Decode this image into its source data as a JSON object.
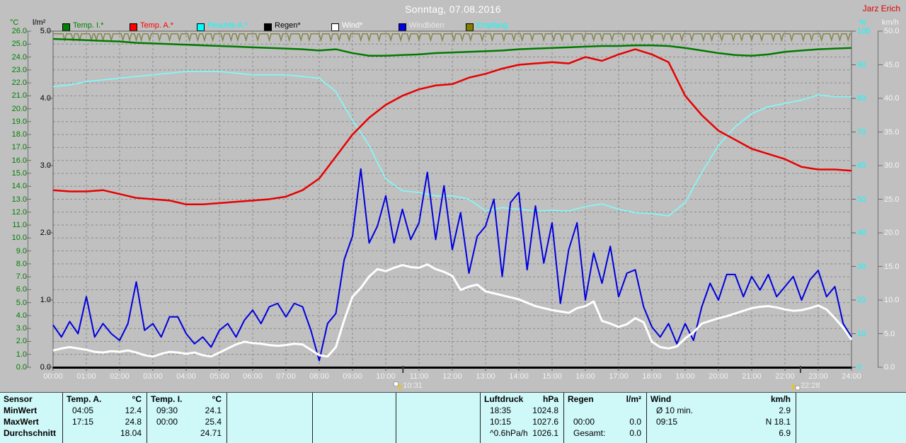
{
  "header": {
    "title": "Sonntag, 07.08.2016",
    "watermark": "Jarz Erich"
  },
  "legend": [
    {
      "label": "Temp. I.*",
      "swatch": "#008000",
      "text": "#008000"
    },
    {
      "label": "Temp. A.*",
      "swatch": "#FF0000",
      "text": "#FF0000"
    },
    {
      "label": "Feuchte A.*",
      "swatch": "#00FFFF",
      "text": "#00FFFF"
    },
    {
      "label": "Regen*",
      "swatch": "#000000",
      "text": "#000000"
    },
    {
      "label": "Wind*",
      "swatch": "#FFFFFF",
      "text": "#FFFFFF"
    },
    {
      "label": "Windböen",
      "swatch": "#0000E0",
      "text": "#E8E8E8"
    },
    {
      "label": "Empfang",
      "swatch": "#808000",
      "text": "#00FFFF"
    }
  ],
  "axes": {
    "left_c": {
      "unit": "°C",
      "labels": [
        "26.0",
        "25.0",
        "24.0",
        "23.0",
        "22.0",
        "21.0",
        "20.0",
        "19.0",
        "18.0",
        "17.0",
        "16.0",
        "15.0",
        "14.0",
        "13.0",
        "12.0",
        "11.0",
        "10.0",
        "9.0",
        "8.0",
        "7.0",
        "6.0",
        "5.0",
        "4.0",
        "3.0",
        "2.0",
        "1.0",
        "0.0"
      ]
    },
    "left_lm2": {
      "unit": "l/m²",
      "labels": [
        "5.0",
        "4.0",
        "3.0",
        "2.0",
        "1.0",
        "0.0"
      ]
    },
    "right_pct": {
      "unit": "%",
      "labels": [
        "100",
        "90",
        "80",
        "70",
        "60",
        "50",
        "40",
        "30",
        "20",
        "10",
        "0"
      ]
    },
    "right_kmh": {
      "unit": "km/h",
      "labels": [
        "50.0",
        "45.0",
        "40.0",
        "35.0",
        "30.0",
        "25.0",
        "20.0",
        "15.0",
        "10.0",
        "5.0",
        "0.0"
      ]
    }
  },
  "x_axis": {
    "labels": [
      "00:00",
      "01:00",
      "02:00",
      "03:00",
      "04:00",
      "05:00",
      "06:00",
      "07:00",
      "08:00",
      "09:00",
      "10:00",
      "11:00",
      "12:00",
      "13:00",
      "14:00",
      "15:00",
      "16:00",
      "17:00",
      "18:00",
      "19:00",
      "20:00",
      "21:00",
      "22:00",
      "23:00",
      "24:00"
    ]
  },
  "sun_moon_markers": [
    {
      "label": "10:31",
      "hour": 10.517,
      "variant": "rise"
    },
    {
      "label": "22:28",
      "hour": 22.467,
      "variant": "set"
    }
  ],
  "chart_data": {
    "type": "line",
    "title": "Sonntag, 07.08.2016",
    "x_unit": "hour",
    "x_range": [
      0,
      24
    ],
    "grid": "dashed, 1 h vertical / 1 °C horizontal",
    "axis_scales": {
      "c": [
        0,
        26
      ],
      "lm2": [
        0,
        5
      ],
      "pct": [
        0,
        100
      ],
      "kmh": [
        0,
        50
      ]
    },
    "series": [
      {
        "id": "temp_i",
        "name": "Temp. I.",
        "axis": "c",
        "color": "#007A00",
        "width": 2.5,
        "x_step": 0.5,
        "values": [
          25.4,
          25.35,
          25.3,
          25.25,
          25.2,
          25.1,
          25.05,
          25.0,
          24.95,
          24.9,
          24.85,
          24.8,
          24.75,
          24.7,
          24.65,
          24.6,
          24.5,
          24.6,
          24.3,
          24.1,
          24.1,
          24.15,
          24.2,
          24.3,
          24.35,
          24.4,
          24.45,
          24.5,
          24.6,
          24.65,
          24.7,
          24.75,
          24.8,
          24.85,
          24.85,
          24.9,
          24.9,
          24.85,
          24.7,
          24.5,
          24.3,
          24.15,
          24.1,
          24.2,
          24.4,
          24.5,
          24.6,
          24.65,
          24.7
        ]
      },
      {
        "id": "temp_a",
        "name": "Temp. A.",
        "axis": "c",
        "color": "#E80000",
        "width": 2.5,
        "x_step": 0.5,
        "values": [
          13.7,
          13.6,
          13.6,
          13.7,
          13.4,
          13.1,
          13.0,
          12.9,
          12.6,
          12.6,
          12.7,
          12.8,
          12.9,
          13.0,
          13.2,
          13.7,
          14.6,
          16.3,
          18.0,
          19.3,
          20.3,
          21.0,
          21.5,
          21.8,
          21.9,
          22.4,
          22.7,
          23.1,
          23.4,
          23.5,
          23.6,
          23.5,
          24.0,
          23.7,
          24.2,
          24.6,
          24.2,
          23.6,
          21.0,
          19.5,
          18.3,
          17.6,
          16.9,
          16.5,
          16.1,
          15.5,
          15.3,
          15.3,
          15.2
        ]
      },
      {
        "id": "feuchte_a",
        "name": "Feuchte A.",
        "axis": "pct",
        "color": "#7DFFFF",
        "width": 1.5,
        "x_step": 0.5,
        "values": [
          83.5,
          84,
          85,
          85.5,
          86,
          86.5,
          87,
          87.5,
          88,
          88,
          88,
          87.5,
          87,
          87,
          87,
          86.5,
          86,
          82,
          73.5,
          66,
          56,
          52.5,
          52,
          51,
          51,
          50,
          46.5,
          47.5,
          47,
          46.5,
          46.7,
          46.5,
          47.8,
          48.6,
          47,
          46,
          45.7,
          45,
          49,
          58,
          66,
          71.5,
          75.5,
          77.5,
          78.5,
          79.5,
          81,
          80.5,
          80.5
        ]
      },
      {
        "id": "regen",
        "name": "Regen",
        "axis": "lm2",
        "color": "#000000",
        "width": 2,
        "x_step": 24,
        "values": [
          0,
          0
        ]
      },
      {
        "id": "wind",
        "name": "Wind",
        "axis": "kmh",
        "color": "#FFFFFF",
        "width": 3,
        "x_step": 0.25,
        "values": [
          2.5,
          2.8,
          3.0,
          2.8,
          2.6,
          2.3,
          2.2,
          2.4,
          2.3,
          2.5,
          2.2,
          1.8,
          1.6,
          2.0,
          2.3,
          2.2,
          2.0,
          2.2,
          1.8,
          1.6,
          2.2,
          2.8,
          3.4,
          3.8,
          3.6,
          3.5,
          3.3,
          3.2,
          3.3,
          3.5,
          3.4,
          2.6,
          1.8,
          1.6,
          3.0,
          7.0,
          10.5,
          11.8,
          13.5,
          14.6,
          14.3,
          14.8,
          15.2,
          14.9,
          14.8,
          15.3,
          14.6,
          14.2,
          13.6,
          11.5,
          12.0,
          12.3,
          11.3,
          11.0,
          10.7,
          10.4,
          10.1,
          9.6,
          9.1,
          8.8,
          8.5,
          8.3,
          8.1,
          8.8,
          9.1,
          9.8,
          6.9,
          6.5,
          6.0,
          6.4,
          7.3,
          6.7,
          3.8,
          3.0,
          2.8,
          3.1,
          4.3,
          5.2,
          6.5,
          6.9,
          7.3,
          7.6,
          8.0,
          8.4,
          8.8,
          9.0,
          9.1,
          8.9,
          8.6,
          8.4,
          8.5,
          8.8,
          9.2,
          8.6,
          7.3,
          5.9,
          4.1
        ]
      },
      {
        "id": "windboeen",
        "name": "Windböen",
        "axis": "kmh",
        "color": "#0000DD",
        "width": 2,
        "x_step": 0.25,
        "values": [
          6.3,
          4.5,
          6.8,
          5.0,
          10.5,
          4.5,
          6.5,
          5.0,
          4.0,
          6.5,
          12.7,
          5.5,
          6.5,
          4.5,
          7.5,
          7.5,
          5.0,
          3.5,
          4.5,
          3.0,
          5.5,
          6.5,
          4.5,
          7.0,
          8.5,
          6.5,
          9.0,
          9.5,
          7.5,
          9.5,
          9.0,
          5.5,
          1.0,
          6.5,
          8.0,
          16.0,
          19.5,
          29.5,
          18.5,
          21.0,
          25.5,
          18.5,
          23.5,
          19.0,
          21.5,
          29.0,
          19.0,
          27.0,
          17.5,
          23.0,
          14.0,
          19.5,
          21.0,
          25.0,
          13.5,
          24.5,
          26.0,
          14.5,
          24.0,
          15.5,
          21.5,
          9.5,
          17.5,
          21.5,
          10.0,
          17.0,
          12.5,
          18.0,
          10.5,
          14.0,
          14.5,
          9.0,
          6.0,
          4.5,
          6.5,
          3.5,
          6.5,
          4.0,
          9.0,
          12.5,
          10.0,
          13.8,
          13.8,
          10.5,
          13.5,
          11.5,
          13.8,
          10.5,
          12.0,
          13.5,
          10.0,
          13.0,
          14.4,
          10.5,
          12.0,
          6.5,
          4.5
        ]
      },
      {
        "id": "empfang",
        "name": "Empfang",
        "axis": "pct",
        "color": "#85854A",
        "width": 1.5,
        "baseline": 99.2,
        "notch_depth": 1.9,
        "notch_hours": [
          0.35,
          0.6,
          0.8,
          1.15,
          1.3,
          1.5,
          1.75,
          2.1,
          2.3,
          2.5,
          2.65,
          2.9,
          3.2,
          3.5,
          3.8,
          4.1,
          4.35,
          4.55,
          4.8,
          5.1,
          5.35,
          5.55,
          5.8,
          6.15,
          6.5,
          6.85,
          7.1,
          7.45,
          7.7,
          8.05,
          8.35,
          8.6,
          8.9,
          9.25,
          9.5,
          9.8,
          10.15,
          10.45,
          10.7,
          11.0,
          11.35,
          11.7,
          12.05,
          12.3,
          12.55,
          12.9,
          13.2,
          13.55,
          13.85,
          14.1,
          14.4,
          14.75,
          15.05,
          15.3,
          15.6,
          15.95,
          16.25,
          16.5,
          16.8,
          17.15,
          17.45,
          17.7,
          18.0,
          18.35,
          18.6,
          18.9,
          19.2,
          19.55,
          19.8,
          20.1,
          20.45,
          20.7,
          21.0,
          21.3,
          21.65,
          21.9,
          22.2,
          22.55,
          22.8,
          23.1,
          23.4,
          23.65,
          23.9
        ]
      }
    ]
  },
  "table": {
    "row_labels": [
      "Sensor",
      "MinWert",
      "MaxWert",
      "Durchschnitt"
    ],
    "sections": [
      {
        "title": "Temp. A.",
        "unit": "°C",
        "rows": [
          [
            "04:05",
            "12.4"
          ],
          [
            "17:15",
            "24.8"
          ],
          [
            "",
            "18.04"
          ]
        ]
      },
      {
        "title": "Temp. I.",
        "unit": "°C",
        "rows": [
          [
            "09:30",
            "24.1"
          ],
          [
            "00:00",
            "25.4"
          ],
          [
            "",
            "24.71"
          ]
        ]
      },
      {
        "title": "",
        "unit": "",
        "rows": [
          [
            "",
            ""
          ],
          [
            "",
            ""
          ],
          [
            "",
            ""
          ]
        ]
      },
      {
        "title": "",
        "unit": "",
        "rows": [
          [
            "",
            ""
          ],
          [
            "",
            ""
          ],
          [
            "",
            ""
          ]
        ]
      },
      {
        "title": "",
        "unit": "",
        "rows": [
          [
            "",
            ""
          ],
          [
            "",
            ""
          ],
          [
            "",
            ""
          ]
        ]
      },
      {
        "title": "Luftdruck",
        "unit": "hPa",
        "rows": [
          [
            "18:35",
            "1024.8"
          ],
          [
            "10:15",
            "1027.6"
          ],
          [
            "^0.6hPa/h",
            "1026.1"
          ]
        ]
      },
      {
        "title": "Regen",
        "unit": "l/m²",
        "rows": [
          [
            "",
            ""
          ],
          [
            "00:00",
            "0.0"
          ],
          [
            "Gesamt:",
            "0.0"
          ]
        ]
      },
      {
        "title": "Wind",
        "unit": "km/h",
        "rows": [
          [
            "Ø 10 min.",
            "2.9"
          ],
          [
            "09:15",
            "N 18.1"
          ],
          [
            "",
            "6.9"
          ]
        ]
      },
      {
        "title": "",
        "unit": "",
        "rows": [
          [
            "",
            ""
          ],
          [
            "",
            ""
          ],
          [
            "",
            ""
          ]
        ]
      }
    ]
  }
}
